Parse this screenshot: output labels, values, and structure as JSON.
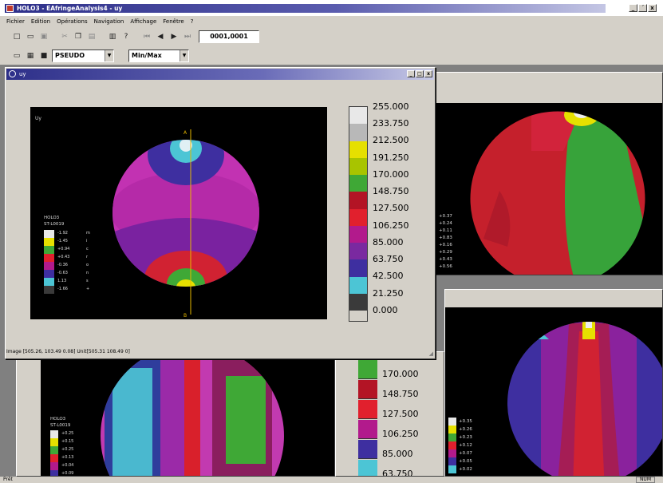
{
  "app": {
    "title": "HOLO3 - EAfringeAnalysis4 - uy",
    "window_controls": [
      "_",
      "´",
      "x"
    ],
    "status_left": "Prêt",
    "status_right": "NUM"
  },
  "menu": [
    "Fichier",
    "Edition",
    "Opérations",
    "Navigation",
    "Affichage",
    "Fenêtre",
    "?"
  ],
  "toolbar": {
    "coord_value": "0001,0001",
    "combo_mode": "PSEUDO",
    "combo_scale": "Min/Max"
  },
  "active_window": {
    "title": "uy",
    "label_top": "A",
    "label_bottom": "B",
    "plot_label": "Uy",
    "status_line": "Image [505.26, 103.49 0.08] Unit[505.31 108.49 0]",
    "colorbar": {
      "labels": [
        "255.000",
        "233.750",
        "212.500",
        "191.250",
        "170.000",
        "148.750",
        "127.500",
        "106.250",
        "85.000",
        "63.750",
        "42.500",
        "21.250",
        "0.000"
      ],
      "colors": [
        "#e8e8e8",
        "#b8b8b8",
        "#e6e000",
        "#a8c400",
        "#3fa836",
        "#b31425",
        "#e1202d",
        "#b21a8c",
        "#7a29a0",
        "#3e2fa0",
        "#4cc5d5",
        "#3a3a3a"
      ]
    },
    "small_legend": {
      "title1": "HOLO3",
      "title2": "ST-L0019",
      "values": [
        "-1.92",
        "-1.45",
        "+0.94",
        "+0.43",
        "-0.36",
        "-0.63",
        "1.13",
        "-1.66"
      ],
      "units": [
        "m",
        "i",
        "c",
        "r",
        "o",
        "n",
        "s",
        "+"
      ],
      "colors": [
        "#e8e8e8",
        "#e6e000",
        "#3fa836",
        "#e1202d",
        "#b21a8c",
        "#3e2fa0",
        "#4cc5d5",
        "#3a3a3a"
      ]
    }
  },
  "bg_right_top": {
    "values": [
      "+0.37",
      "+0.24",
      "+0.11",
      "+0.83",
      "+0.16",
      "+0.29",
      "+0.43",
      "+0.56"
    ]
  },
  "bg_bottom_mid": {
    "labels": [
      "170.000",
      "148.750",
      "127.500",
      "106.250",
      "85.000",
      "63.750"
    ],
    "colors": [
      "#3fa836",
      "#b31425",
      "#e1202d",
      "#b21a8c",
      "#3e2fa0",
      "#4cc5d5"
    ]
  },
  "bg_bottom_left_legend": {
    "title1": "HOLO3",
    "title2": "ST-L0019",
    "values": [
      "+0.25",
      "+0.15",
      "+0.25",
      "+0.13",
      "+0.04",
      "+0.09"
    ],
    "colors": [
      "#e8e8e8",
      "#e6e000",
      "#3fa836",
      "#e1202d",
      "#b21a8c",
      "#3e2fa0"
    ]
  },
  "bg_bottom_right_legend": {
    "values": [
      "+0.35",
      "+0.26",
      "+0.23",
      "+0.12",
      "+0.07",
      "+0.05",
      "+0.02"
    ],
    "colors": [
      "#e8e8e8",
      "#e6e000",
      "#3fa836",
      "#e1202d",
      "#b21a8c",
      "#3e2fa0",
      "#4cc5d5"
    ]
  }
}
